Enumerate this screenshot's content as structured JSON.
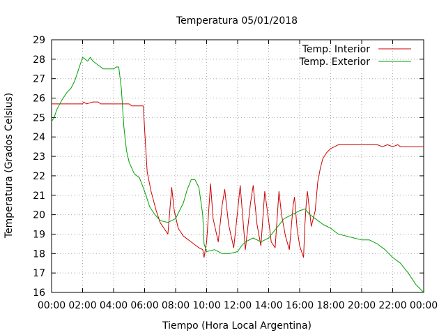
{
  "chart_data": {
    "type": "line",
    "title": "Temperatura 05/01/2018",
    "xlabel": "Tiempo (Hora Local Argentina)",
    "ylabel": "Temperatura (Grados Celsius)",
    "xlim": [
      "00:00",
      "24:00"
    ],
    "ylim": [
      16,
      29
    ],
    "xticks": [
      "00:00",
      "02:00",
      "04:00",
      "06:00",
      "08:00",
      "10:00",
      "12:00",
      "14:00",
      "16:00",
      "18:00",
      "20:00",
      "22:00",
      "00:00"
    ],
    "yticks": [
      16,
      17,
      18,
      19,
      20,
      21,
      22,
      23,
      24,
      25,
      26,
      27,
      28,
      29
    ],
    "grid": true,
    "legend_position": "top-right",
    "series": [
      {
        "name": "Temp. Interior",
        "color": "#cc0000",
        "points": [
          [
            "00:00",
            25.7
          ],
          [
            "01:00",
            25.7
          ],
          [
            "02:00",
            25.7
          ],
          [
            "02:05",
            25.8
          ],
          [
            "02:15",
            25.7
          ],
          [
            "02:40",
            25.8
          ],
          [
            "03:00",
            25.8
          ],
          [
            "03:10",
            25.7
          ],
          [
            "04:00",
            25.7
          ],
          [
            "05:00",
            25.7
          ],
          [
            "05:10",
            25.6
          ],
          [
            "05:55",
            25.6
          ],
          [
            "06:00",
            24.4
          ],
          [
            "06:10",
            22.2
          ],
          [
            "06:25",
            21.2
          ],
          [
            "06:45",
            20.2
          ],
          [
            "07:00",
            19.6
          ],
          [
            "07:20",
            19.2
          ],
          [
            "07:30",
            19.0
          ],
          [
            "07:45",
            21.4
          ],
          [
            "07:55",
            20.2
          ],
          [
            "08:10",
            19.3
          ],
          [
            "08:30",
            18.9
          ],
          [
            "09:00",
            18.6
          ],
          [
            "09:30",
            18.3
          ],
          [
            "09:45",
            18.2
          ],
          [
            "09:50",
            17.8
          ],
          [
            "10:00",
            18.6
          ],
          [
            "10:15",
            21.6
          ],
          [
            "10:25",
            19.8
          ],
          [
            "10:45",
            18.6
          ],
          [
            "11:00",
            20.5
          ],
          [
            "11:10",
            21.3
          ],
          [
            "11:25",
            19.5
          ],
          [
            "11:45",
            18.3
          ],
          [
            "12:00",
            20.2
          ],
          [
            "12:10",
            21.5
          ],
          [
            "12:30",
            18.2
          ],
          [
            "12:50",
            20.6
          ],
          [
            "13:00",
            21.5
          ],
          [
            "13:15",
            19.5
          ],
          [
            "13:30",
            18.4
          ],
          [
            "13:45",
            21.2
          ],
          [
            "14:00",
            19.7
          ],
          [
            "14:10",
            18.6
          ],
          [
            "14:25",
            18.3
          ],
          [
            "14:40",
            21.2
          ],
          [
            "14:50",
            20.0
          ],
          [
            "15:05",
            18.9
          ],
          [
            "15:20",
            18.2
          ],
          [
            "15:35",
            20.5
          ],
          [
            "15:40",
            20.9
          ],
          [
            "15:50",
            19.3
          ],
          [
            "16:00",
            18.4
          ],
          [
            "16:10",
            18.0
          ],
          [
            "16:15",
            17.8
          ],
          [
            "16:20",
            19.4
          ],
          [
            "16:25",
            20.5
          ],
          [
            "16:30",
            21.2
          ],
          [
            "16:45",
            19.4
          ],
          [
            "17:00",
            20.2
          ],
          [
            "17:10",
            21.7
          ],
          [
            "17:20",
            22.4
          ],
          [
            "17:30",
            22.9
          ],
          [
            "17:45",
            23.2
          ],
          [
            "18:00",
            23.4
          ],
          [
            "18:15",
            23.5
          ],
          [
            "18:30",
            23.6
          ],
          [
            "19:00",
            23.6
          ],
          [
            "20:00",
            23.6
          ],
          [
            "21:00",
            23.6
          ],
          [
            "21:20",
            23.5
          ],
          [
            "21:40",
            23.6
          ],
          [
            "22:00",
            23.5
          ],
          [
            "22:20",
            23.6
          ],
          [
            "22:30",
            23.5
          ],
          [
            "23:00",
            23.5
          ],
          [
            "23:30",
            23.5
          ],
          [
            "24:00",
            23.5
          ]
        ]
      },
      {
        "name": "Temp. Exterior",
        "color": "#00a000",
        "points": [
          [
            "00:00",
            24.8
          ],
          [
            "00:10",
            25.0
          ],
          [
            "00:20",
            25.4
          ],
          [
            "00:40",
            25.9
          ],
          [
            "01:00",
            26.3
          ],
          [
            "01:15",
            26.5
          ],
          [
            "01:30",
            26.9
          ],
          [
            "01:40",
            27.3
          ],
          [
            "01:50",
            27.7
          ],
          [
            "02:00",
            28.1
          ],
          [
            "02:10",
            28.0
          ],
          [
            "02:20",
            27.9
          ],
          [
            "02:30",
            28.1
          ],
          [
            "02:40",
            27.9
          ],
          [
            "02:50",
            27.8
          ],
          [
            "03:10",
            27.6
          ],
          [
            "03:20",
            27.5
          ],
          [
            "03:40",
            27.5
          ],
          [
            "04:00",
            27.5
          ],
          [
            "04:10",
            27.6
          ],
          [
            "04:20",
            27.6
          ],
          [
            "04:30",
            26.5
          ],
          [
            "04:40",
            24.5
          ],
          [
            "04:50",
            23.3
          ],
          [
            "05:00",
            22.7
          ],
          [
            "05:20",
            22.1
          ],
          [
            "05:40",
            21.9
          ],
          [
            "06:00",
            21.2
          ],
          [
            "06:20",
            20.4
          ],
          [
            "06:40",
            20.0
          ],
          [
            "07:00",
            19.7
          ],
          [
            "07:30",
            19.6
          ],
          [
            "08:00",
            19.8
          ],
          [
            "08:30",
            20.6
          ],
          [
            "08:45",
            21.3
          ],
          [
            "09:00",
            21.8
          ],
          [
            "09:15",
            21.8
          ],
          [
            "09:30",
            21.4
          ],
          [
            "09:45",
            20.0
          ],
          [
            "09:50",
            18.5
          ],
          [
            "10:00",
            18.1
          ],
          [
            "10:30",
            18.2
          ],
          [
            "11:00",
            18.0
          ],
          [
            "11:30",
            18.0
          ],
          [
            "12:00",
            18.1
          ],
          [
            "12:15",
            18.4
          ],
          [
            "12:30",
            18.6
          ],
          [
            "13:00",
            18.8
          ],
          [
            "13:30",
            18.6
          ],
          [
            "14:00",
            18.8
          ],
          [
            "14:30",
            19.3
          ],
          [
            "15:00",
            19.8
          ],
          [
            "15:30",
            20.0
          ],
          [
            "16:00",
            20.2
          ],
          [
            "16:20",
            20.3
          ],
          [
            "16:40",
            20.0
          ],
          [
            "17:00",
            19.8
          ],
          [
            "17:30",
            19.5
          ],
          [
            "18:00",
            19.3
          ],
          [
            "18:30",
            19.0
          ],
          [
            "19:00",
            18.9
          ],
          [
            "19:30",
            18.8
          ],
          [
            "20:00",
            18.7
          ],
          [
            "20:30",
            18.7
          ],
          [
            "21:00",
            18.5
          ],
          [
            "21:30",
            18.2
          ],
          [
            "22:00",
            17.8
          ],
          [
            "22:30",
            17.5
          ],
          [
            "23:00",
            17.0
          ],
          [
            "23:30",
            16.4
          ],
          [
            "24:00",
            16.0
          ]
        ]
      }
    ]
  }
}
